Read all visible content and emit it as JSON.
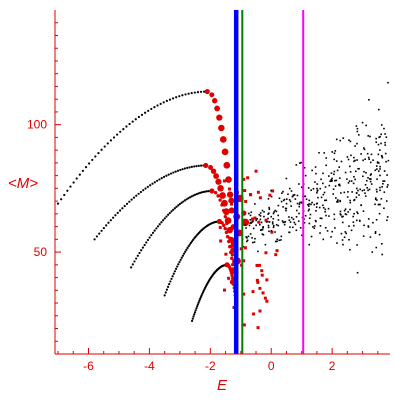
{
  "chart_data": {
    "type": "scatter",
    "title": "",
    "xlabel": "E",
    "ylabel": "<M>",
    "xlim": [
      -7.1,
      3.9
    ],
    "ylim": [
      10,
      145
    ],
    "x_ticks": [
      -6,
      -4,
      -2,
      0,
      2
    ],
    "y_ticks": [
      50,
      100
    ],
    "grid": false,
    "legend": "none",
    "vertical_lines": [
      {
        "x": -1.15,
        "color": "#0000ff"
      },
      {
        "x": -0.95,
        "color": "#008000"
      },
      {
        "x": 1.05,
        "color": "#ff00ff"
      }
    ],
    "curves": [
      {
        "x_start": -7.0,
        "x_peak": -2.1,
        "y_start": 69,
        "y_peak": 113
      },
      {
        "x_start": -5.8,
        "x_peak": -2.15,
        "y_start": 55,
        "y_peak": 84
      },
      {
        "x_start": -4.6,
        "x_peak": -1.95,
        "y_start": 44,
        "y_peak": 74
      },
      {
        "x_start": -3.5,
        "x_peak": -1.7,
        "y_start": 33,
        "y_peak": 62
      },
      {
        "x_start": -2.6,
        "x_peak": -1.45,
        "y_start": 23,
        "y_peak": 45
      }
    ],
    "colors": {
      "axis": "#e00000",
      "curve_dots": "#000000",
      "red_markers": "#e00000",
      "cloud_dots": "#000000"
    }
  }
}
